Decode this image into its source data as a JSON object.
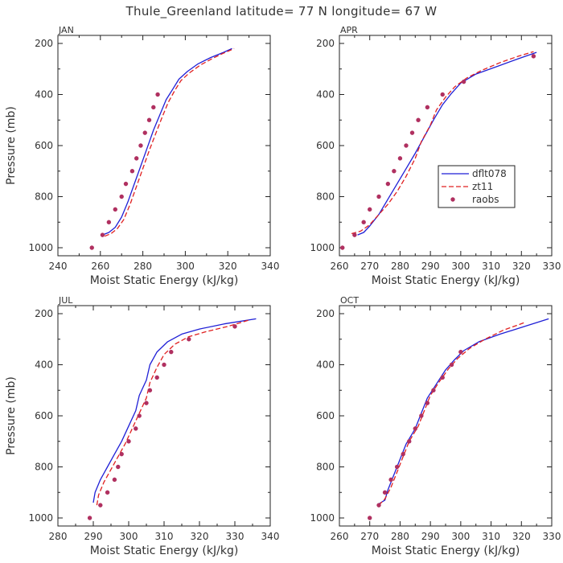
{
  "title": "Thule_Greenland  latitude= 77 N longitude= 67 W",
  "legend": {
    "position": "inside APR panel, right",
    "entries": [
      {
        "name": "dflt078",
        "style": "solid",
        "color": "#1f1fd6"
      },
      {
        "name": "zt11",
        "style": "dashed",
        "color": "#e02020"
      },
      {
        "name": "raobs",
        "style": "dots",
        "color": "#b03060"
      }
    ]
  },
  "chart_data": [
    {
      "type": "line",
      "panel": "JAN",
      "xlabel": "Moist Static Energy (kJ/kg)",
      "ylabel": "Pressure (mb)",
      "xlim": [
        240,
        340
      ],
      "ylim": [
        1000,
        200
      ],
      "y_inverted": true,
      "xticks": [
        "240",
        "260",
        "280",
        "300",
        "320",
        "340"
      ],
      "yticks": [
        "200",
        "400",
        "600",
        "800",
        "1000"
      ],
      "series": [
        {
          "name": "dflt078",
          "points": [
            [
              261,
              950
            ],
            [
              264,
              940
            ],
            [
              267,
              920
            ],
            [
              270,
              880
            ],
            [
              273,
              820
            ],
            [
              276,
              750
            ],
            [
              279,
              680
            ],
            [
              282,
              610
            ],
            [
              285,
              540
            ],
            [
              288,
              480
            ],
            [
              291,
              420
            ],
            [
              294,
              380
            ],
            [
              297,
              340
            ],
            [
              301,
              310
            ],
            [
              306,
              280
            ],
            [
              312,
              255
            ],
            [
              318,
              235
            ],
            [
              322,
              220
            ]
          ]
        },
        {
          "name": "zt11",
          "points": [
            [
              262,
              955
            ],
            [
              265,
              945
            ],
            [
              268,
              925
            ],
            [
              271,
              890
            ],
            [
              274,
              830
            ],
            [
              277,
              760
            ],
            [
              280,
              690
            ],
            [
              283,
              620
            ],
            [
              286,
              555
            ],
            [
              289,
              490
            ],
            [
              292,
              430
            ],
            [
              295,
              385
            ],
            [
              298,
              345
            ],
            [
              302,
              315
            ],
            [
              307,
              285
            ],
            [
              313,
              258
            ],
            [
              318,
              238
            ],
            [
              323,
              220
            ]
          ]
        },
        {
          "name": "raobs",
          "points": [
            [
              256,
              1000
            ],
            [
              261,
              950
            ],
            [
              264,
              900
            ],
            [
              267,
              850
            ],
            [
              270,
              800
            ],
            [
              272,
              750
            ],
            [
              275,
              700
            ],
            [
              277,
              650
            ],
            [
              279,
              600
            ],
            [
              281,
              550
            ],
            [
              283,
              500
            ],
            [
              285,
              450
            ],
            [
              287,
              400
            ]
          ]
        }
      ]
    },
    {
      "type": "line",
      "panel": "APR",
      "xlabel": "Moist Static Energy (kJ/kg)",
      "ylabel": "",
      "xlim": [
        260,
        330
      ],
      "ylim": [
        1000,
        200
      ],
      "y_inverted": true,
      "xticks": [
        "260",
        "270",
        "280",
        "290",
        "300",
        "310",
        "320",
        "330"
      ],
      "yticks": [
        "200",
        "400",
        "600",
        "800",
        "1000"
      ],
      "series": [
        {
          "name": "dflt078",
          "points": [
            [
              266,
              950
            ],
            [
              268,
              940
            ],
            [
              270,
              915
            ],
            [
              273,
              870
            ],
            [
              276,
              810
            ],
            [
              279,
              750
            ],
            [
              282,
              690
            ],
            [
              285,
              630
            ],
            [
              288,
              565
            ],
            [
              291,
              500
            ],
            [
              294,
              440
            ],
            [
              297,
              395
            ],
            [
              300,
              355
            ],
            [
              305,
              320
            ],
            [
              312,
              290
            ],
            [
              319,
              260
            ],
            [
              325,
              235
            ]
          ]
        },
        {
          "name": "zt11",
          "points": [
            [
              264,
              945
            ],
            [
              267,
              935
            ],
            [
              270,
              910
            ],
            [
              273,
              870
            ],
            [
              276,
              830
            ],
            [
              279,
              780
            ],
            [
              282,
              720
            ],
            [
              285,
              650
            ],
            [
              287,
              585
            ],
            [
              290,
              520
            ],
            [
              292,
              460
            ],
            [
              295,
              410
            ],
            [
              298,
              370
            ],
            [
              302,
              335
            ],
            [
              307,
              305
            ],
            [
              313,
              275
            ],
            [
              319,
              250
            ],
            [
              324,
              232
            ]
          ]
        },
        {
          "name": "raobs",
          "points": [
            [
              261,
              1000
            ],
            [
              265,
              950
            ],
            [
              268,
              900
            ],
            [
              270,
              850
            ],
            [
              273,
              800
            ],
            [
              276,
              750
            ],
            [
              278,
              700
            ],
            [
              280,
              650
            ],
            [
              282,
              600
            ],
            [
              284,
              550
            ],
            [
              286,
              500
            ],
            [
              289,
              450
            ],
            [
              294,
              400
            ],
            [
              301,
              350
            ],
            [
              324,
              250
            ]
          ]
        }
      ]
    },
    {
      "type": "line",
      "panel": "JUL",
      "xlabel": "Moist Static Energy (kJ/kg)",
      "ylabel": "Pressure (mb)",
      "xlim": [
        280,
        340
      ],
      "ylim": [
        1000,
        200
      ],
      "y_inverted": true,
      "xticks": [
        "280",
        "290",
        "300",
        "310",
        "320",
        "330",
        "340"
      ],
      "yticks": [
        "200",
        "400",
        "600",
        "800",
        "1000"
      ],
      "series": [
        {
          "name": "dflt078",
          "points": [
            [
              290,
              940
            ],
            [
              290.5,
              900
            ],
            [
              292,
              850
            ],
            [
              294,
              800
            ],
            [
              296,
              750
            ],
            [
              298,
              700
            ],
            [
              300,
              640
            ],
            [
              302,
              580
            ],
            [
              303,
              520
            ],
            [
              305,
              460
            ],
            [
              306,
              400
            ],
            [
              308,
              350
            ],
            [
              311,
              310
            ],
            [
              315,
              280
            ],
            [
              320,
              260
            ],
            [
              327,
              240
            ],
            [
              336,
              220
            ]
          ]
        },
        {
          "name": "zt11",
          "points": [
            [
              291,
              950
            ],
            [
              291.5,
              910
            ],
            [
              293,
              860
            ],
            [
              295,
              810
            ],
            [
              297,
              760
            ],
            [
              299,
              710
            ],
            [
              301,
              650
            ],
            [
              303,
              590
            ],
            [
              305,
              530
            ],
            [
              306,
              470
            ],
            [
              308,
              410
            ],
            [
              310,
              360
            ],
            [
              313,
              320
            ],
            [
              317,
              290
            ],
            [
              322,
              270
            ],
            [
              328,
              250
            ],
            [
              334,
              225
            ]
          ]
        },
        {
          "name": "raobs",
          "points": [
            [
              289,
              1000
            ],
            [
              292,
              950
            ],
            [
              294,
              900
            ],
            [
              296,
              850
            ],
            [
              297,
              800
            ],
            [
              298,
              750
            ],
            [
              300,
              700
            ],
            [
              302,
              650
            ],
            [
              303,
              600
            ],
            [
              305,
              550
            ],
            [
              306,
              500
            ],
            [
              308,
              450
            ],
            [
              310,
              400
            ],
            [
              312,
              350
            ],
            [
              317,
              300
            ],
            [
              330,
              250
            ]
          ]
        }
      ]
    },
    {
      "type": "line",
      "panel": "OCT",
      "xlabel": "Moist Static Energy (kJ/kg)",
      "ylabel": "",
      "xlim": [
        260,
        330
      ],
      "ylim": [
        1000,
        200
      ],
      "y_inverted": true,
      "xticks": [
        "260",
        "270",
        "280",
        "290",
        "300",
        "310",
        "320",
        "330"
      ],
      "yticks": [
        "200",
        "400",
        "600",
        "800",
        "1000"
      ],
      "series": [
        {
          "name": "dflt078",
          "points": [
            [
              273,
              945
            ],
            [
              275,
              930
            ],
            [
              276,
              890
            ],
            [
              278,
              830
            ],
            [
              280,
              770
            ],
            [
              282,
              710
            ],
            [
              285,
              650
            ],
            [
              287,
              590
            ],
            [
              289,
              530
            ],
            [
              292,
              475
            ],
            [
              295,
              420
            ],
            [
              298,
              380
            ],
            [
              301,
              345
            ],
            [
              306,
              310
            ],
            [
              313,
              280
            ],
            [
              321,
              250
            ],
            [
              329,
              220
            ]
          ]
        },
        {
          "name": "zt11",
          "points": [
            [
              273,
              950
            ],
            [
              275,
              925
            ],
            [
              277,
              880
            ],
            [
              279,
              820
            ],
            [
              281,
              760
            ],
            [
              283,
              700
            ],
            [
              286,
              640
            ],
            [
              288,
              580
            ],
            [
              290,
              520
            ],
            [
              293,
              465
            ],
            [
              296,
              415
            ],
            [
              299,
              375
            ],
            [
              303,
              335
            ],
            [
              308,
              300
            ],
            [
              314,
              265
            ],
            [
              321,
              235
            ]
          ]
        },
        {
          "name": "raobs",
          "points": [
            [
              270,
              1000
            ],
            [
              273,
              950
            ],
            [
              275,
              900
            ],
            [
              277,
              850
            ],
            [
              279,
              800
            ],
            [
              281,
              750
            ],
            [
              283,
              700
            ],
            [
              285,
              650
            ],
            [
              287,
              600
            ],
            [
              289,
              550
            ],
            [
              291,
              500
            ],
            [
              294,
              450
            ],
            [
              297,
              400
            ],
            [
              300,
              350
            ]
          ]
        }
      ]
    }
  ]
}
